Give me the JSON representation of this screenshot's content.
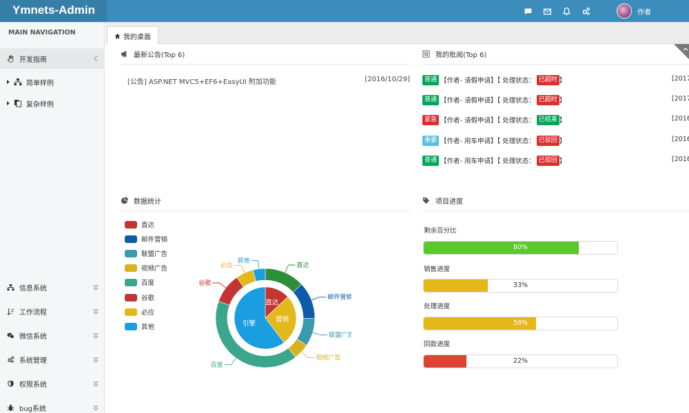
{
  "header": {
    "logo": "Ymnets-Admin",
    "user": "作者",
    "icons": [
      "comment-icon",
      "envelope-icon",
      "bell-icon",
      "cogs-icon"
    ]
  },
  "sidebar": {
    "heading": "MAIN NAVIGATION",
    "items": [
      {
        "label": "开发指南",
        "icon": "hand-icon"
      },
      {
        "label": "简单样例",
        "icon": "sitemap-icon"
      },
      {
        "label": "复杂样例",
        "icon": "copy-icon"
      },
      {
        "label": "信息系统",
        "icon": "sitemap-icon"
      },
      {
        "label": "工作流程",
        "icon": "sort-icon"
      },
      {
        "label": "微信系统",
        "icon": "wechat-icon"
      },
      {
        "label": "系统管理",
        "icon": "cogs-icon"
      },
      {
        "label": "权限系统",
        "icon": "shield-icon"
      },
      {
        "label": "bug系统",
        "icon": "bug-icon"
      }
    ]
  },
  "tabs": [
    {
      "label": "我的桌面"
    }
  ],
  "notice": {
    "title": "最新公告(Top 6)",
    "items": [
      {
        "text": "[公告] ASP.NET MVC5+EF6+EasyUI 附加功能",
        "date": "[2016/10/29]"
      }
    ]
  },
  "approvals": {
    "title": "我的批阅(Top 6)",
    "items": [
      {
        "level": "普通",
        "levelColor": "#00a65a",
        "text": "【作者- 请假申请】【 处理状态：",
        "status": "已超时",
        "statusColor": "#dd2f2f",
        "tail": "】",
        "date": "[2017-"
      },
      {
        "level": "普通",
        "levelColor": "#00a65a",
        "text": "【作者- 请假申请】【 处理状态：",
        "status": "已超时",
        "statusColor": "#dd2f2f",
        "tail": "】",
        "date": "[2017-"
      },
      {
        "level": "紧急",
        "levelColor": "#dd2f2f",
        "text": "【作者- 请假申请】【 处理状态：",
        "status": "已结束",
        "statusColor": "#00a65a",
        "tail": "】",
        "date": "[2016-"
      },
      {
        "level": "重要",
        "levelColor": "#5bc0de",
        "text": "【作者- 用车申请】【 处理状态：",
        "status": "已驳回",
        "statusColor": "#dd2f2f",
        "tail": "】",
        "date": "[2016-"
      },
      {
        "level": "普通",
        "levelColor": "#00a65a",
        "text": "【作者- 用车申请】【 处理状态：",
        "status": "已驳回",
        "statusColor": "#dd2f2f",
        "tail": "】",
        "date": "[2016-"
      }
    ]
  },
  "stats": {
    "title": "数据统计"
  },
  "progress": {
    "title": "项目进度",
    "items": [
      {
        "label": "剩余百分比",
        "value": 80,
        "text": "80%",
        "color": "#5bc72b",
        "textColor": "#ffffff"
      },
      {
        "label": "销售进度",
        "value": 33,
        "text": "33%",
        "color": "#e4b818",
        "textColor": "#333333"
      },
      {
        "label": "处理进度",
        "value": 58,
        "text": "58%",
        "color": "#e4b818",
        "textColor": "#ffffff"
      },
      {
        "label": "回款进度",
        "value": 22,
        "text": "22%",
        "color": "#dd4433",
        "textColor": "#333333"
      }
    ]
  },
  "chart_data": {
    "type": "pie",
    "legend": [
      {
        "name": "直达",
        "color": "#c23531"
      },
      {
        "name": "邮件营销",
        "color": "#0e5bab"
      },
      {
        "name": "联盟广告",
        "color": "#3a9aae"
      },
      {
        "name": "视频广告",
        "color": "#d6b41f"
      },
      {
        "name": "百度",
        "color": "#3aa68b"
      },
      {
        "name": "谷歌",
        "color": "#c23531"
      },
      {
        "name": "必应",
        "color": "#e2b81b"
      },
      {
        "name": "其他",
        "color": "#1b9ee0"
      }
    ],
    "inner": [
      {
        "name": "直达",
        "value": 335,
        "color": "#c23531"
      },
      {
        "name": "营销",
        "value": 679,
        "color": "#e2b81b"
      },
      {
        "name": "引擎",
        "value": 1548,
        "color": "#1b9ee0"
      }
    ],
    "outer": [
      {
        "name": "直达",
        "value": 335,
        "color": "#2d8e3a"
      },
      {
        "name": "邮件营销",
        "value": 310,
        "color": "#0e5bab"
      },
      {
        "name": "联盟广告",
        "value": 234,
        "color": "#3a9aae"
      },
      {
        "name": "视频广告",
        "value": 135,
        "color": "#d6b41f"
      },
      {
        "name": "百度",
        "value": 1048,
        "color": "#3aa68b"
      },
      {
        "name": "谷歌",
        "value": 251,
        "color": "#c23531"
      },
      {
        "name": "必应",
        "value": 147,
        "color": "#e2b81b"
      },
      {
        "name": "其他",
        "value": 102,
        "color": "#1b9ee0"
      }
    ]
  }
}
